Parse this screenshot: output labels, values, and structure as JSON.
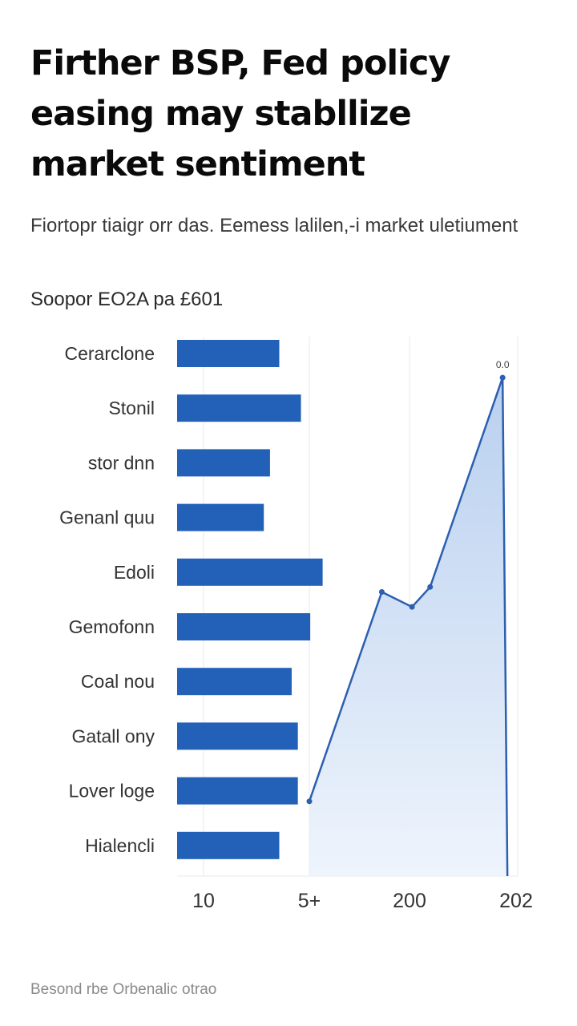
{
  "headline": "Firther BSP, Fed policy easing may stabllize market sentiment",
  "subtitle": "Fiortopr tiaigr orr das. Eemess lalilen,-i market uletiument",
  "source_line": "Soopor EO2A  pa £601",
  "footer": "Besond rbe Orbenalic otrao",
  "colors": {
    "bar": "#2360b8",
    "line": "#2c5fb0",
    "area_top": "#b9d0ef",
    "area_bottom": "#eef4fc",
    "grid": "#e6e9ee",
    "axis_text": "#333333"
  },
  "chart_data": [
    {
      "type": "bar",
      "orientation": "horizontal",
      "categories": [
        "Cerarclone",
        "Stonil",
        "stor dnn",
        "Genanl quu",
        "Edoli",
        "Gemofonn",
        "Coal nou",
        "Gatall ony",
        "Lover loge",
        "Hialencli"
      ],
      "values": [
        3.3,
        4.0,
        3.0,
        2.8,
        4.7,
        4.3,
        3.7,
        3.9,
        3.9,
        3.3
      ],
      "xlim": [
        0,
        11
      ]
    },
    {
      "type": "area",
      "x": [
        1,
        2.2,
        2.7,
        3.0,
        4.2
      ],
      "y": [
        1.5,
        5.7,
        5.4,
        5.8,
        10.0
      ],
      "point_label": "0.0",
      "xticks": [
        "10",
        "5+",
        "200",
        "202"
      ],
      "ylim": [
        0,
        10.5
      ]
    }
  ]
}
